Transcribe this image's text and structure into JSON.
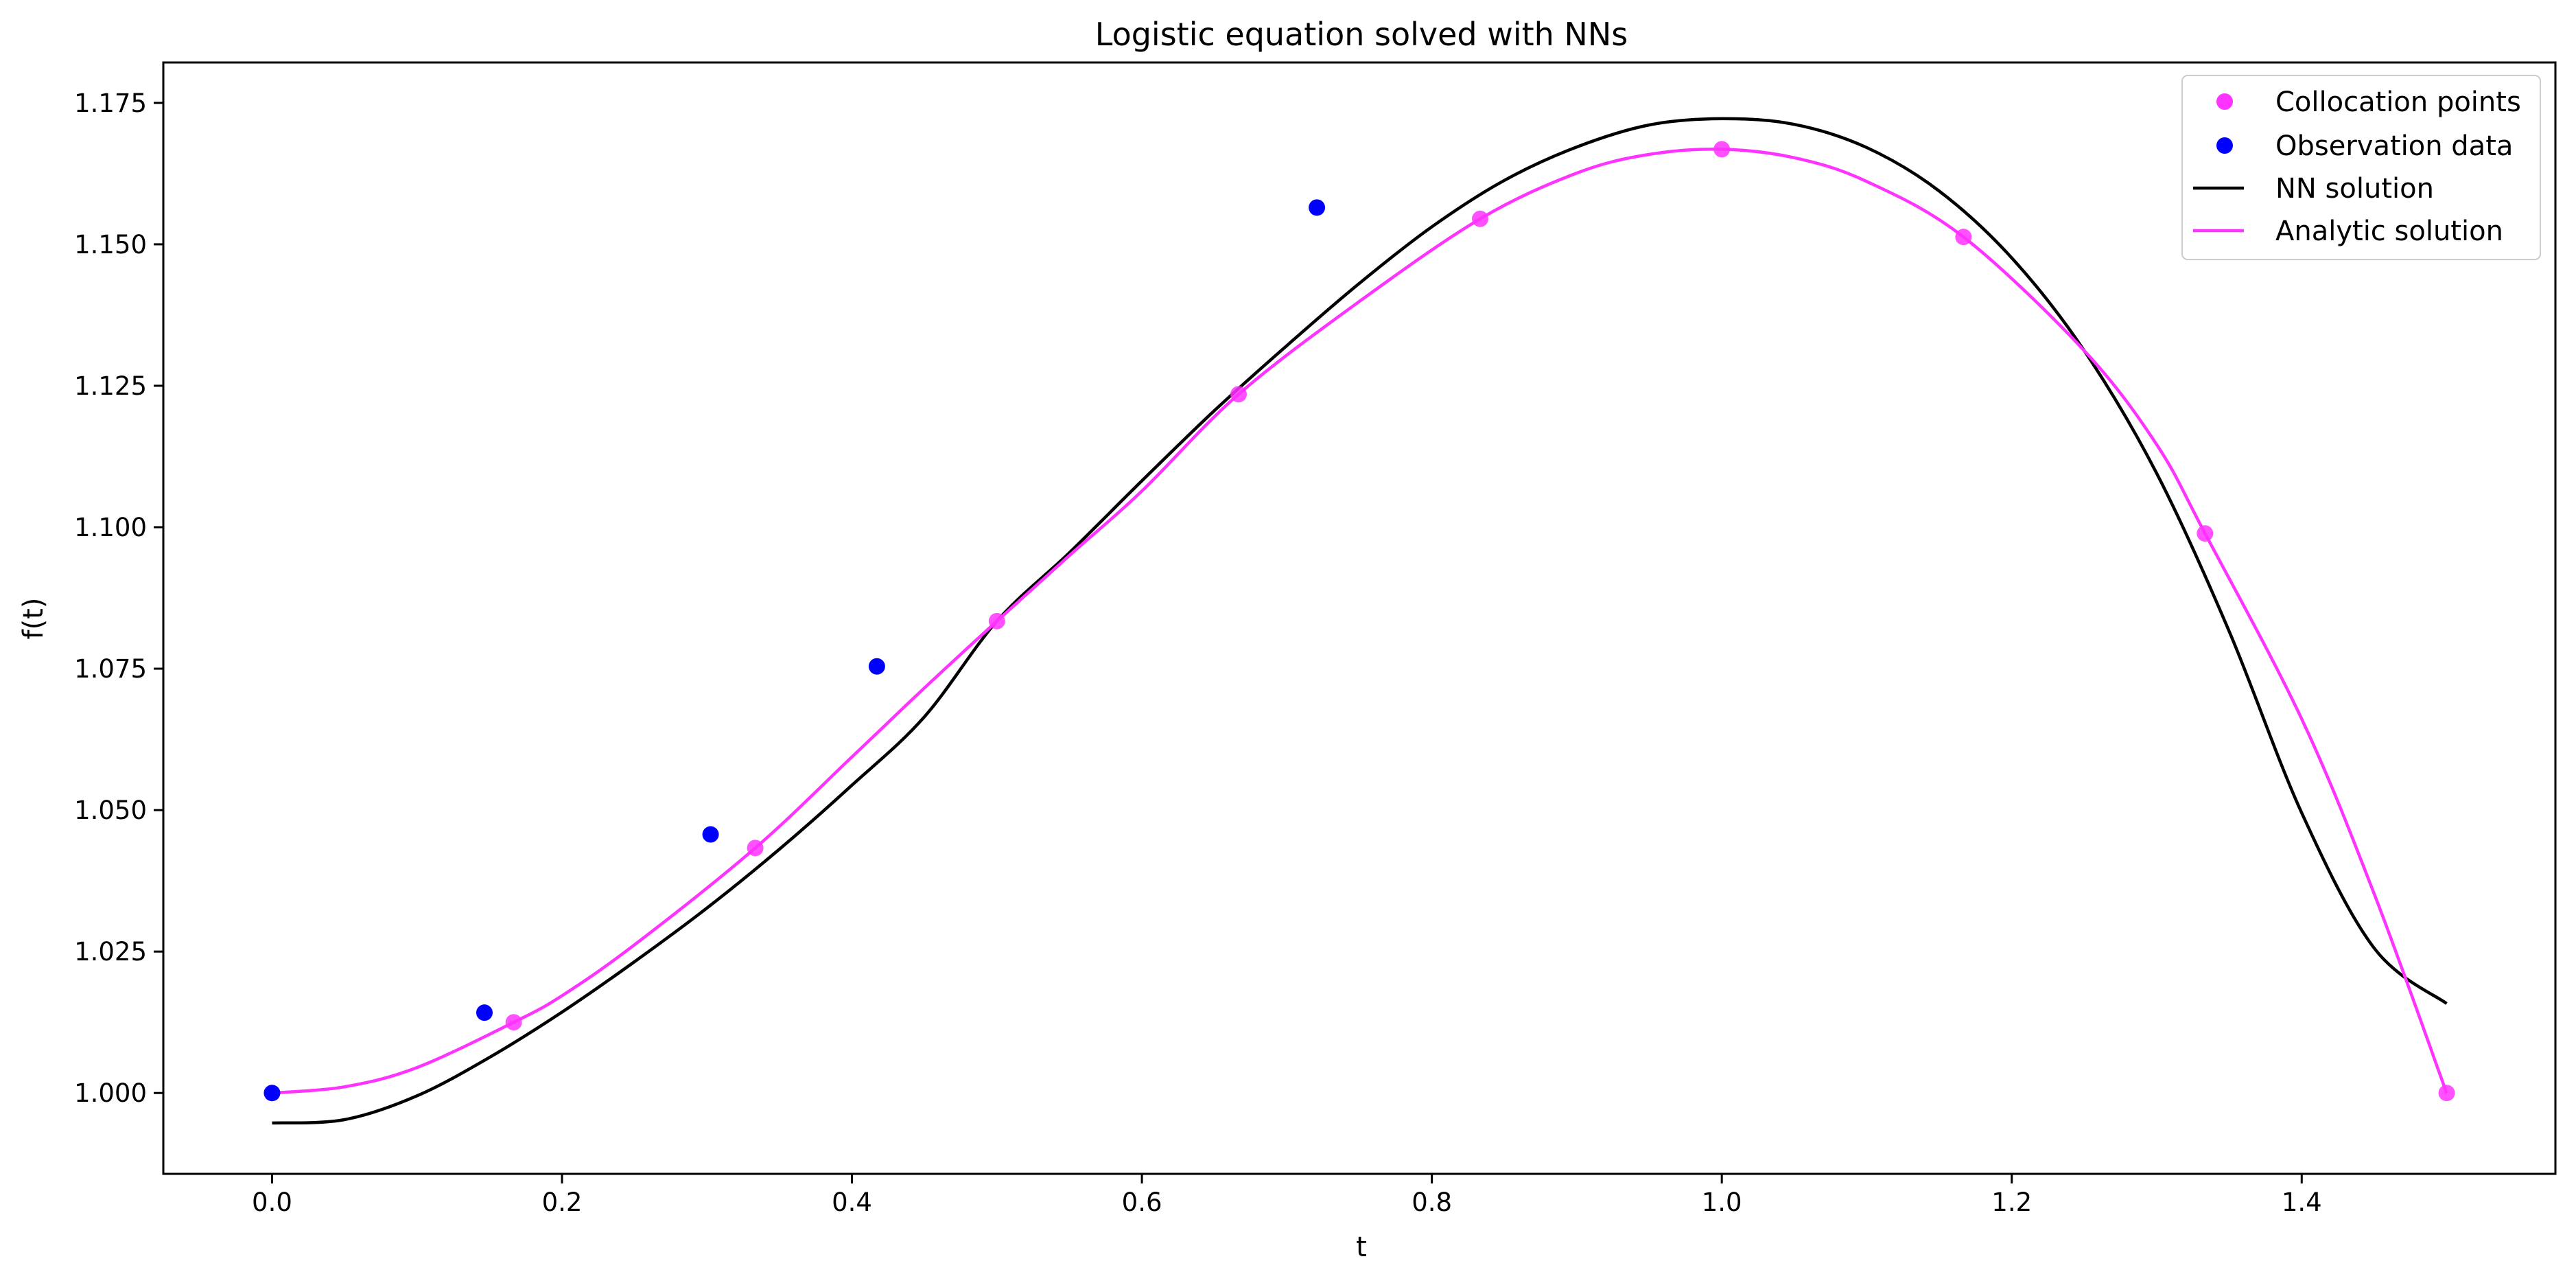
{
  "chart_data": {
    "type": "scatter+line",
    "title": "Logistic equation solved with NNs",
    "xlabel": "t",
    "ylabel": "f(t)",
    "xlim": [
      -0.075,
      1.575
    ],
    "ylim": [
      0.98571,
      1.18214
    ],
    "xticks": [
      0.0,
      0.2,
      0.4,
      0.6,
      0.8,
      1.0,
      1.2,
      1.4
    ],
    "xtick_labels": [
      "0.0",
      "0.2",
      "0.4",
      "0.6",
      "0.8",
      "1.0",
      "1.2",
      "1.4"
    ],
    "yticks": [
      1.0,
      1.025,
      1.05,
      1.075,
      1.1,
      1.125,
      1.15,
      1.175
    ],
    "ytick_labels": [
      "1.000",
      "1.025",
      "1.050",
      "1.075",
      "1.100",
      "1.125",
      "1.150",
      "1.175"
    ],
    "grid": false,
    "legend_position": "top-right",
    "series": [
      {
        "name": "Collocation points",
        "kind": "scatter",
        "color": "#ff33ff",
        "points": [
          [
            0.0,
            1.0
          ],
          [
            0.1667,
            1.0125
          ],
          [
            0.3333,
            1.0433
          ],
          [
            0.5,
            1.0834
          ],
          [
            0.6667,
            1.1235
          ],
          [
            0.8333,
            1.1545
          ],
          [
            1.0,
            1.1668
          ],
          [
            1.1667,
            1.1513
          ],
          [
            1.3333,
            1.0989
          ],
          [
            1.5,
            1.0
          ]
        ]
      },
      {
        "name": "Observation data",
        "kind": "scatter",
        "color": "#0000ff",
        "points": [
          [
            0.0,
            1.0
          ],
          [
            0.1465,
            1.0142
          ],
          [
            0.3025,
            1.0457
          ],
          [
            0.4172,
            1.0754
          ],
          [
            0.7207,
            1.1565
          ]
        ]
      },
      {
        "name": "NN solution",
        "kind": "line",
        "color": "#000000",
        "points": [
          [
            0.0,
            0.9947
          ],
          [
            0.05,
            0.9953
          ],
          [
            0.1,
            0.9995
          ],
          [
            0.15,
            1.0063
          ],
          [
            0.2,
            1.0143
          ],
          [
            0.25,
            1.0232
          ],
          [
            0.3,
            1.0327
          ],
          [
            0.35,
            1.0431
          ],
          [
            0.4,
            1.0544
          ],
          [
            0.45,
            1.0665
          ],
          [
            0.5,
            1.0834
          ],
          [
            0.55,
            1.0955
          ],
          [
            0.6,
            1.1082
          ],
          [
            0.65,
            1.1206
          ],
          [
            0.7,
            1.1321
          ],
          [
            0.75,
            1.1431
          ],
          [
            0.8,
            1.1531
          ],
          [
            0.85,
            1.1613
          ],
          [
            0.9,
            1.1672
          ],
          [
            0.95,
            1.1711
          ],
          [
            1.0,
            1.1722
          ],
          [
            1.05,
            1.1712
          ],
          [
            1.1,
            1.1671
          ],
          [
            1.15,
            1.1594
          ],
          [
            1.2,
            1.1476
          ],
          [
            1.25,
            1.1312
          ],
          [
            1.3,
            1.1095
          ],
          [
            1.35,
            1.0816
          ],
          [
            1.4,
            1.0495
          ],
          [
            1.45,
            1.0256
          ],
          [
            1.5,
            1.0158
          ]
        ]
      },
      {
        "name": "Analytic solution",
        "kind": "line",
        "color": "#ff33ff",
        "points": [
          [
            0.0,
            1.0
          ],
          [
            0.05,
            1.0011
          ],
          [
            0.1,
            1.0045
          ],
          [
            0.1667,
            1.0125
          ],
          [
            0.2,
            1.0172
          ],
          [
            0.25,
            1.0262
          ],
          [
            0.3333,
            1.0433
          ],
          [
            0.4,
            1.0594
          ],
          [
            0.45,
            1.0716
          ],
          [
            0.5,
            1.0834
          ],
          [
            0.55,
            1.095
          ],
          [
            0.6,
            1.1064
          ],
          [
            0.6667,
            1.1235
          ],
          [
            0.75,
            1.1399
          ],
          [
            0.8333,
            1.1545
          ],
          [
            0.9,
            1.1626
          ],
          [
            0.95,
            1.1659
          ],
          [
            1.0,
            1.1668
          ],
          [
            1.05,
            1.1653
          ],
          [
            1.1,
            1.1611
          ],
          [
            1.1667,
            1.1513
          ],
          [
            1.25,
            1.1312
          ],
          [
            1.3,
            1.1146
          ],
          [
            1.3333,
            1.0989
          ],
          [
            1.4,
            1.0661
          ],
          [
            1.45,
            1.0352
          ],
          [
            1.5,
            1.0
          ]
        ]
      }
    ]
  }
}
